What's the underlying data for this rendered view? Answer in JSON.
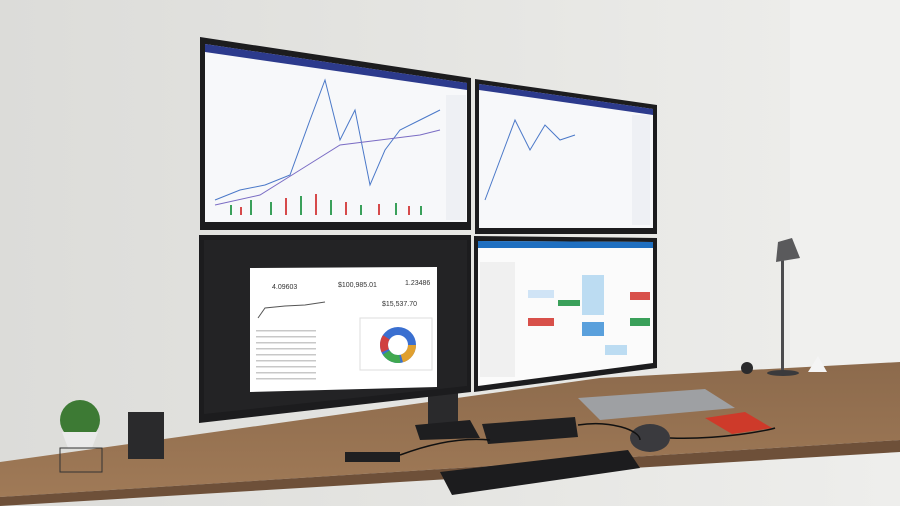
{
  "dashboard": {
    "kpis": [
      "4.09603",
      "$100,985.01",
      "1.23486",
      "$15,537.70"
    ]
  }
}
